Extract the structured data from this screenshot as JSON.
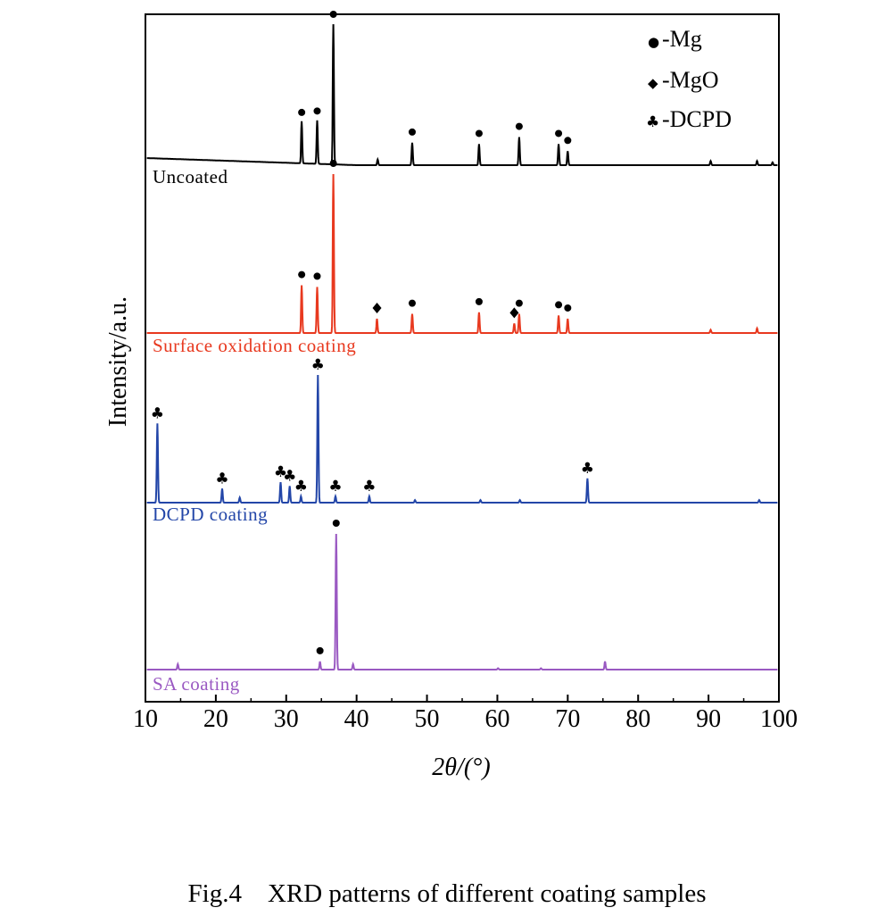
{
  "caption": "Fig.4    XRD patterns of different coating samples",
  "chart_data": {
    "type": "line",
    "title": "",
    "xlabel": "2θ/(°)",
    "ylabel": "Intensity/a.u.",
    "xlim": [
      10,
      100
    ],
    "xticks": [
      "10",
      "20",
      "30",
      "40",
      "50",
      "60",
      "70",
      "80",
      "90",
      "100"
    ],
    "grid": false,
    "legend_position": "top-right",
    "legend": [
      {
        "symbol": "circle",
        "symbol_char": "●",
        "label": "-Mg"
      },
      {
        "symbol": "diamond",
        "symbol_char": "◆",
        "label": "-MgO"
      },
      {
        "symbol": "club",
        "symbol_char": "♣",
        "label": "-DCPD"
      }
    ],
    "series": [
      {
        "name": "Uncoated",
        "color": "#000000",
        "peaks": [
          {
            "x": 32.2,
            "h": 0.3
          },
          {
            "x": 34.4,
            "h": 0.31
          },
          {
            "x": 36.7,
            "h": 1.0
          },
          {
            "x": 43.0,
            "h": 0.04
          },
          {
            "x": 47.9,
            "h": 0.16
          },
          {
            "x": 57.4,
            "h": 0.15
          },
          {
            "x": 63.1,
            "h": 0.2
          },
          {
            "x": 68.7,
            "h": 0.15
          },
          {
            "x": 70.0,
            "h": 0.1
          },
          {
            "x": 90.3,
            "h": 0.03
          },
          {
            "x": 96.9,
            "h": 0.03
          },
          {
            "x": 99.1,
            "h": 0.02
          }
        ],
        "markers": [
          {
            "x": 32.2,
            "h": 0.3,
            "symbol": "circle"
          },
          {
            "x": 34.4,
            "h": 0.31,
            "symbol": "circle"
          },
          {
            "x": 36.7,
            "h": 1.0,
            "symbol": "circle"
          },
          {
            "x": 47.9,
            "h": 0.16,
            "symbol": "circle"
          },
          {
            "x": 57.4,
            "h": 0.15,
            "symbol": "circle"
          },
          {
            "x": 63.1,
            "h": 0.2,
            "symbol": "circle"
          },
          {
            "x": 68.7,
            "h": 0.15,
            "symbol": "circle"
          },
          {
            "x": 70.0,
            "h": 0.1,
            "symbol": "circle"
          }
        ]
      },
      {
        "name": "Surface oxidation coating",
        "color": "#e8391f",
        "peaks": [
          {
            "x": 32.2,
            "h": 0.3
          },
          {
            "x": 34.4,
            "h": 0.29
          },
          {
            "x": 36.7,
            "h": 1.0
          },
          {
            "x": 42.9,
            "h": 0.09
          },
          {
            "x": 47.9,
            "h": 0.12
          },
          {
            "x": 57.4,
            "h": 0.13
          },
          {
            "x": 62.4,
            "h": 0.06
          },
          {
            "x": 63.1,
            "h": 0.12
          },
          {
            "x": 68.7,
            "h": 0.11
          },
          {
            "x": 70.0,
            "h": 0.09
          },
          {
            "x": 90.3,
            "h": 0.02
          },
          {
            "x": 96.9,
            "h": 0.03
          }
        ],
        "markers": [
          {
            "x": 32.2,
            "h": 0.3,
            "symbol": "circle"
          },
          {
            "x": 34.4,
            "h": 0.29,
            "symbol": "circle"
          },
          {
            "x": 36.7,
            "h": 1.0,
            "symbol": "circle"
          },
          {
            "x": 42.9,
            "h": 0.09,
            "symbol": "diamond"
          },
          {
            "x": 47.9,
            "h": 0.12,
            "symbol": "circle"
          },
          {
            "x": 57.4,
            "h": 0.13,
            "symbol": "circle"
          },
          {
            "x": 62.4,
            "h": 0.06,
            "symbol": "diamond"
          },
          {
            "x": 63.1,
            "h": 0.12,
            "symbol": "circle"
          },
          {
            "x": 68.7,
            "h": 0.11,
            "symbol": "circle"
          },
          {
            "x": 70.0,
            "h": 0.09,
            "symbol": "circle"
          }
        ]
      },
      {
        "name": "DCPD coating",
        "color": "#2346a8",
        "peaks": [
          {
            "x": 11.7,
            "h": 0.62
          },
          {
            "x": 20.9,
            "h": 0.11
          },
          {
            "x": 23.4,
            "h": 0.04
          },
          {
            "x": 29.2,
            "h": 0.16
          },
          {
            "x": 30.5,
            "h": 0.13
          },
          {
            "x": 32.1,
            "h": 0.05
          },
          {
            "x": 34.5,
            "h": 1.0
          },
          {
            "x": 37.0,
            "h": 0.05
          },
          {
            "x": 41.8,
            "h": 0.05
          },
          {
            "x": 48.3,
            "h": 0.02
          },
          {
            "x": 57.6,
            "h": 0.02
          },
          {
            "x": 63.2,
            "h": 0.02
          },
          {
            "x": 72.8,
            "h": 0.19
          },
          {
            "x": 97.2,
            "h": 0.02
          }
        ],
        "markers": [
          {
            "x": 11.7,
            "h": 0.62,
            "symbol": "club"
          },
          {
            "x": 20.9,
            "h": 0.11,
            "symbol": "club"
          },
          {
            "x": 29.2,
            "h": 0.16,
            "symbol": "club"
          },
          {
            "x": 30.5,
            "h": 0.13,
            "symbol": "club"
          },
          {
            "x": 32.1,
            "h": 0.05,
            "symbol": "club"
          },
          {
            "x": 34.5,
            "h": 1.0,
            "symbol": "club"
          },
          {
            "x": 37.0,
            "h": 0.05,
            "symbol": "club"
          },
          {
            "x": 41.8,
            "h": 0.05,
            "symbol": "club"
          },
          {
            "x": 72.8,
            "h": 0.19,
            "symbol": "club"
          }
        ]
      },
      {
        "name": "SA coating",
        "color": "#9a59c2",
        "peaks": [
          {
            "x": 14.6,
            "h": 0.04
          },
          {
            "x": 34.8,
            "h": 0.06
          },
          {
            "x": 37.1,
            "h": 1.0
          },
          {
            "x": 39.5,
            "h": 0.04
          },
          {
            "x": 60.1,
            "h": 0.01
          },
          {
            "x": 66.2,
            "h": 0.01
          },
          {
            "x": 75.3,
            "h": 0.06
          }
        ],
        "markers": [
          {
            "x": 34.8,
            "h": 0.06,
            "symbol": "circle"
          },
          {
            "x": 37.1,
            "h": 1.0,
            "symbol": "circle"
          }
        ]
      }
    ]
  }
}
